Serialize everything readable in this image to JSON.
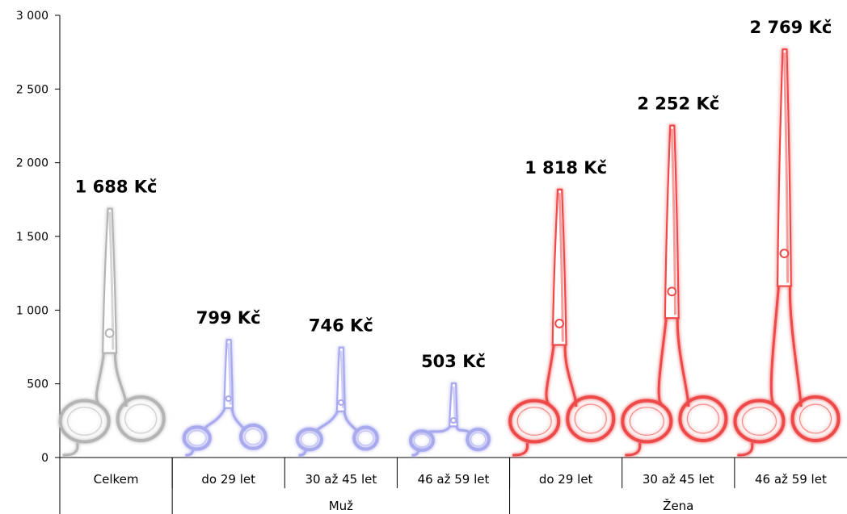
{
  "chart_data": {
    "type": "bar",
    "title": "",
    "xlabel": "",
    "ylabel": "",
    "ylim": [
      0,
      3000
    ],
    "yticks": [
      0,
      500,
      1000,
      1500,
      2000,
      2500,
      3000
    ],
    "ytick_labels": [
      "0",
      "500",
      "1 000",
      "1 500",
      "2 000",
      "2 500",
      "3 000"
    ],
    "categories": [
      "Celkem",
      "do 29 let",
      "30 až 45 let",
      "46 až 59 let",
      "do 29 let",
      "30 až 45 let",
      "46 až 59 let"
    ],
    "groups": [
      {
        "label": "",
        "start": 0,
        "end": 0
      },
      {
        "label": "Muž",
        "start": 1,
        "end": 3
      },
      {
        "label": "Žena",
        "start": 4,
        "end": 6
      }
    ],
    "values": [
      1688,
      799,
      746,
      503,
      1818,
      2252,
      2769
    ],
    "value_labels": [
      "1 688 Kč",
      "799 Kč",
      "746 Kč",
      "503 Kč",
      "1 818 Kč",
      "2 252 Kč",
      "2 769 Kč"
    ],
    "bar_style": "scissors-icon",
    "colors": [
      "#b4b4b4",
      "#a9a9ee",
      "#a9a9ee",
      "#a9a9ee",
      "#ee4a4a",
      "#ee4a4a",
      "#ee4a4a"
    ],
    "grid": false,
    "legend": "none"
  }
}
